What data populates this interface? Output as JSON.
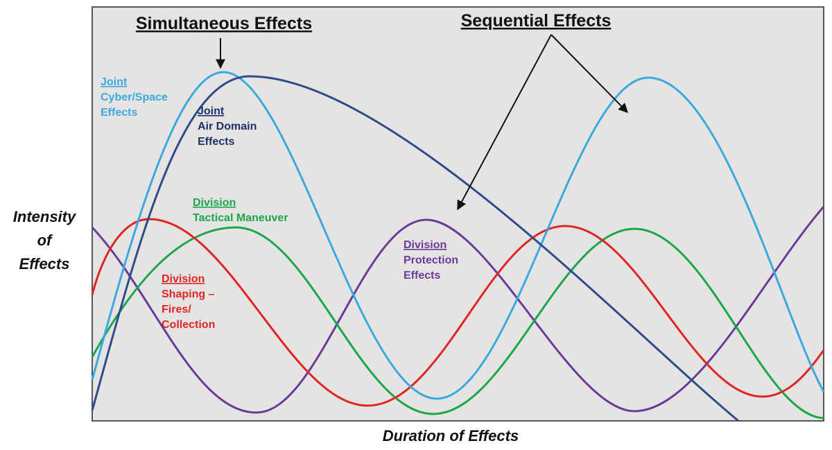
{
  "titles": {
    "simultaneous": "Simultaneous Effects",
    "sequential": "Sequential Effects"
  },
  "y_axis_label": [
    "Intensity",
    "of",
    "Effects"
  ],
  "x_axis_label": "Duration of Effects",
  "labels": [
    {
      "heading": "Joint",
      "lines": [
        "Cyber/Space",
        "Effects"
      ]
    },
    {
      "heading": "Joint",
      "lines": [
        "Air Domain",
        "Effects"
      ]
    },
    {
      "heading": "Division",
      "lines": [
        "Tactical Maneuver"
      ]
    },
    {
      "heading": "Division",
      "lines": [
        "Shaping –",
        "Fires/",
        "Collection"
      ]
    },
    {
      "heading": "Division",
      "lines": [
        "Protection",
        "Effects"
      ]
    }
  ]
}
